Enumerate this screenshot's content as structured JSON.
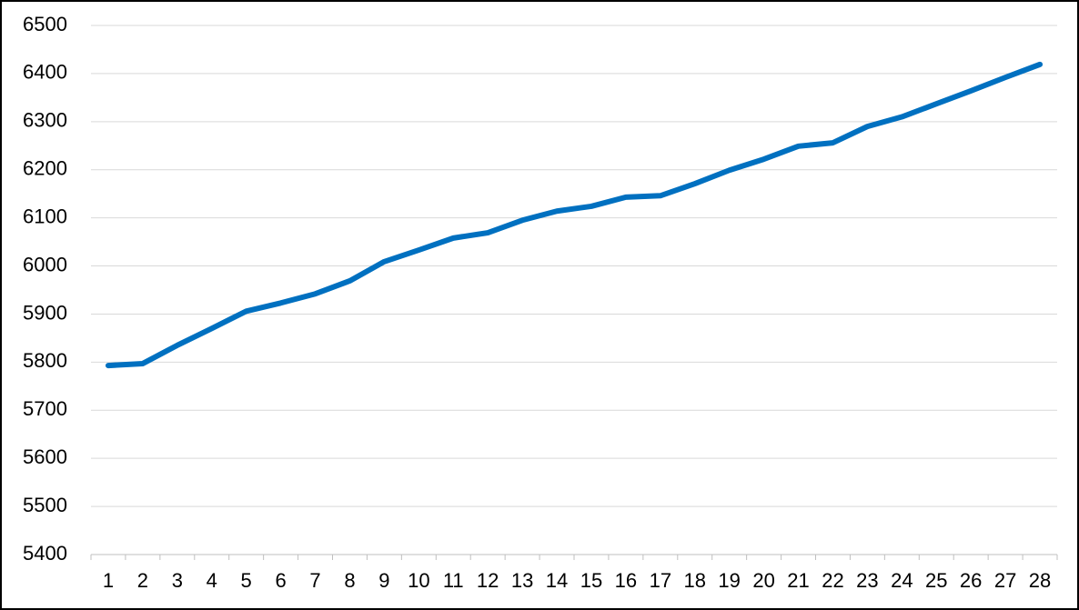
{
  "chart_data": {
    "type": "line",
    "categories": [
      "1",
      "2",
      "3",
      "4",
      "5",
      "6",
      "7",
      "8",
      "9",
      "10",
      "11",
      "12",
      "13",
      "14",
      "15",
      "16",
      "17",
      "18",
      "19",
      "20",
      "21",
      "22",
      "23",
      "24",
      "25",
      "26",
      "27",
      "28"
    ],
    "series": [
      {
        "color": "#0070c0",
        "values": [
          5793,
          5797,
          5835,
          5870,
          5906,
          5923,
          5942,
          5969,
          6009,
          6033,
          6058,
          6069,
          6095,
          6114,
          6124,
          6143,
          6146,
          6171,
          6199,
          6222,
          6249,
          6256,
          6290,
          6310,
          6337,
          6364,
          6392,
          6419
        ]
      }
    ],
    "ylim": [
      5400,
      6500
    ],
    "yticks": [
      5400,
      5500,
      5600,
      5700,
      5800,
      5900,
      6000,
      6100,
      6200,
      6300,
      6400,
      6500
    ],
    "grid": true
  }
}
